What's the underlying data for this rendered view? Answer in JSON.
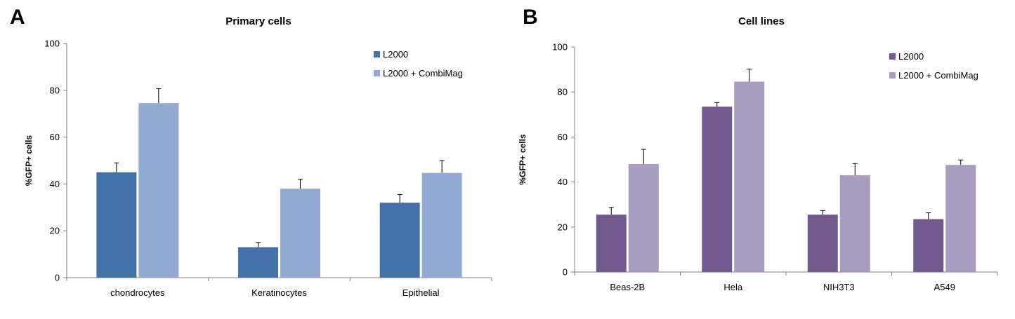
{
  "panel_labels": [
    "A",
    "B"
  ],
  "chart_data": [
    {
      "type": "bar",
      "title": "Primary cells",
      "xlabel": "",
      "ylabel": "%GFP+ cells",
      "ylim": [
        0,
        100
      ],
      "yticks": [
        0,
        20,
        40,
        60,
        80,
        100
      ],
      "grid": false,
      "legend": "top-right",
      "categories": [
        "chondrocytes",
        "Keratinocytes",
        "Epithelial"
      ],
      "series": [
        {
          "name": "L2000",
          "color": "#4472a8",
          "values": [
            45,
            13,
            32
          ],
          "errors": [
            4,
            2,
            3.5
          ]
        },
        {
          "name": "L2000 + CombiMag",
          "color": "#95aad2",
          "values": [
            74.5,
            38,
            44.7
          ],
          "errors": [
            6.2,
            4,
            5.3
          ]
        }
      ]
    },
    {
      "type": "bar",
      "title": "Cell lines",
      "xlabel": "",
      "ylabel": "%GFP+ cells",
      "ylim": [
        0,
        100
      ],
      "yticks": [
        0,
        20,
        40,
        60,
        80,
        100
      ],
      "grid": false,
      "legend": "top-right",
      "categories": [
        "Beas-2B",
        "Hela",
        "NIH3T3",
        "A549"
      ],
      "series": [
        {
          "name": "L2000",
          "color": "#725a8f",
          "values": [
            25.5,
            73.5,
            25.5,
            23.5
          ],
          "errors": [
            3.2,
            1.8,
            1.8,
            2.8
          ]
        },
        {
          "name": "L2000 + CombiMag",
          "color": "#aa9cbf",
          "values": [
            48,
            84.6,
            43,
            47.6
          ],
          "errors": [
            6.5,
            5.6,
            5.2,
            2.2
          ]
        }
      ]
    }
  ]
}
